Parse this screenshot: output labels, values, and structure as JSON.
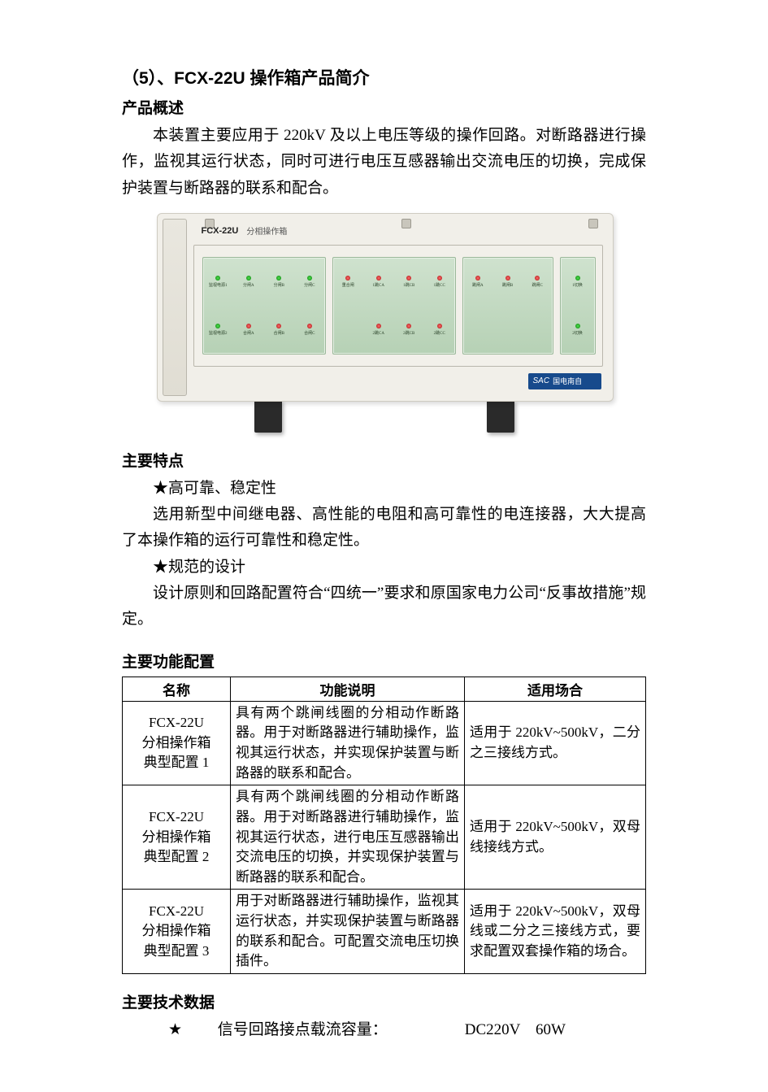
{
  "title": "（5）、FCX-22U 操作箱产品简介",
  "section_overview_head": "产品概述",
  "section_overview_body": "本装置主要应用于 220kV 及以上电压等级的操作回路。对断路器进行操作，监视其运行状态，同时可进行电压互感器输出交流电压的切换，完成保护装置与断路器的联系和配合。",
  "section_features_head": "主要特点",
  "feature1_title": "★高可靠、稳定性",
  "feature1_body": "选用新型中间继电器、高性能的电阻和高可靠性的电连接器，大大提高了本操作箱的运行可靠性和稳定性。",
  "feature2_title": "★规范的设计",
  "feature2_body": "设计原则和回路配置符合“四统一”要求和原国家电力公司“反事故措施”规定。",
  "section_table_head": "主要功能配置",
  "table": {
    "col_name": "名称",
    "col_desc": "功能说明",
    "col_use": "适用场合",
    "rows": [
      {
        "name": "FCX-22U\n分相操作箱\n典型配置 1",
        "desc": "具有两个跳闸线圈的分相动作断路器。用于对断路器进行辅助操作，监视其运行状态，并实现保护装置与断路器的联系和配合。",
        "use": "适用于 220kV~500kV，二分之三接线方式。"
      },
      {
        "name": "FCX-22U\n分相操作箱\n典型配置 2",
        "desc": "具有两个跳闸线圈的分相动作断路器。用于对断路器进行辅助操作，监视其运行状态，进行电压互感器输出交流电压的切换，并实现保护装置与断路器的联系和配合。",
        "use": "适用于 220kV~500kV，双母线接线方式。"
      },
      {
        "name": "FCX-22U\n分相操作箱\n典型配置 3",
        "desc": "用于对断路器进行辅助操作，监视其运行状态，并实现保护装置与断路器的联系和配合。可配置交流电压切换插件。",
        "use": "适用于 220kV~500kV，双母线或二分之三接线方式，要求配置双套操作箱的场合。"
      }
    ]
  },
  "section_tech_head": "主要技术数据",
  "tech_star": "★",
  "tech_label": "信号回路接点载流容量：",
  "tech_value": "DC220V　60W",
  "device": {
    "model": "FCX-22U",
    "model_sub": "分相操作箱",
    "brand_en": "SAC",
    "brand_cn": "国电南自",
    "panel1_row1": [
      "监视电源1",
      "分闸A",
      "分闸B",
      "分闸C"
    ],
    "panel1_row2": [
      "监视电源2",
      "合闸A",
      "合闸B",
      "合闸C"
    ],
    "panel2_row1": [
      "重合闸",
      "1跳CA",
      "1跳CB",
      "1跳CC"
    ],
    "panel2_row2": [
      "",
      "2跳CA",
      "2跳CB",
      "2跳CC"
    ],
    "panel3_row1": [
      "跳闸A",
      "跳闸B",
      "跳闸C"
    ],
    "panel3_row2": [
      "",
      "",
      ""
    ],
    "panel4_row1": [
      "1切换"
    ],
    "panel4_row2": [
      "2切换"
    ]
  }
}
